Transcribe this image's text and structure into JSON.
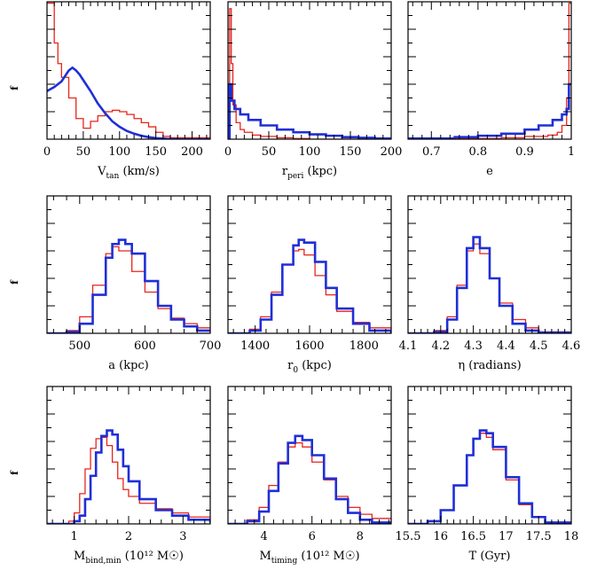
{
  "figure": {
    "colors": {
      "red": "#e8241c",
      "blue": "#1f2fd6",
      "axis": "#000000"
    },
    "y_label": "f"
  },
  "chart_data": [
    {
      "type": "line",
      "xlabel_main": "V",
      "xlabel_sub": "tan",
      "xlabel_tail": " (km/s)",
      "xlim": [
        0,
        225
      ],
      "ylim": [
        0,
        1
      ],
      "xticks": [
        0,
        50,
        100,
        150,
        200
      ],
      "series": [
        {
          "color": "red",
          "step": true,
          "x": [
            0,
            5,
            10,
            15,
            20,
            30,
            40,
            50,
            60,
            70,
            80,
            90,
            100,
            110,
            120,
            130,
            140,
            150,
            160,
            170,
            225
          ],
          "y": [
            0.99,
            0.99,
            0.7,
            0.55,
            0.45,
            0.3,
            0.15,
            0.08,
            0.13,
            0.17,
            0.2,
            0.21,
            0.2,
            0.18,
            0.15,
            0.12,
            0.09,
            0.05,
            0.02,
            0.01,
            0.0
          ]
        },
        {
          "color": "blue",
          "step": false,
          "x": [
            0,
            10,
            20,
            30,
            35,
            40,
            45,
            50,
            60,
            70,
            80,
            90,
            100,
            110,
            120,
            130,
            140,
            150,
            165,
            180,
            225
          ],
          "y": [
            0.35,
            0.38,
            0.42,
            0.5,
            0.52,
            0.5,
            0.47,
            0.43,
            0.35,
            0.26,
            0.19,
            0.13,
            0.09,
            0.06,
            0.04,
            0.025,
            0.015,
            0.008,
            0.003,
            0.0,
            0.0
          ]
        }
      ]
    },
    {
      "type": "line",
      "xlabel_main": "r",
      "xlabel_sub": "peri",
      "xlabel_tail": " (kpc)",
      "xlim": [
        0,
        200
      ],
      "ylim": [
        0,
        1
      ],
      "xticks": [
        0,
        50,
        100,
        150,
        200
      ],
      "series": [
        {
          "color": "red",
          "step": true,
          "x": [
            0,
            2,
            4,
            6,
            10,
            15,
            20,
            30,
            40,
            60,
            80,
            100,
            200
          ],
          "y": [
            0.0,
            0.95,
            0.55,
            0.25,
            0.12,
            0.07,
            0.05,
            0.03,
            0.02,
            0.01,
            0.005,
            0.0,
            0.0
          ]
        },
        {
          "color": "blue",
          "step": true,
          "x": [
            0,
            2,
            4,
            8,
            15,
            25,
            40,
            60,
            80,
            100,
            120,
            140,
            160,
            180,
            200
          ],
          "y": [
            0.0,
            0.4,
            0.28,
            0.22,
            0.18,
            0.14,
            0.1,
            0.07,
            0.05,
            0.035,
            0.025,
            0.015,
            0.01,
            0.005,
            0.003
          ]
        }
      ]
    },
    {
      "type": "line",
      "xlabel_main": "e",
      "xlabel_sub": "",
      "xlabel_tail": "",
      "xlim": [
        0.65,
        1.0
      ],
      "ylim": [
        0,
        1
      ],
      "xticks": [
        0.7,
        0.8,
        0.9,
        1.0
      ],
      "xtick_labels": [
        "0.7",
        "0.8",
        "0.9",
        "1"
      ],
      "series": [
        {
          "color": "red",
          "step": true,
          "x": [
            0.65,
            0.75,
            0.85,
            0.9,
            0.95,
            0.97,
            0.98,
            0.99,
            0.995,
            1.0
          ],
          "y": [
            0.0,
            0.005,
            0.01,
            0.02,
            0.03,
            0.05,
            0.1,
            0.3,
            0.99,
            0.99
          ]
        },
        {
          "color": "blue",
          "step": true,
          "x": [
            0.65,
            0.75,
            0.8,
            0.85,
            0.9,
            0.93,
            0.96,
            0.98,
            0.99,
            0.995,
            1.0
          ],
          "y": [
            0.005,
            0.015,
            0.025,
            0.04,
            0.07,
            0.1,
            0.14,
            0.18,
            0.22,
            0.4,
            0.4
          ]
        }
      ]
    },
    {
      "type": "line",
      "xlabel_main": "a (kpc)",
      "xlabel_sub": "",
      "xlabel_tail": "",
      "xlim": [
        450,
        700
      ],
      "ylim": [
        0,
        1
      ],
      "xticks": [
        500,
        600,
        700
      ],
      "series": [
        {
          "color": "red",
          "step": true,
          "x": [
            450,
            480,
            500,
            520,
            540,
            550,
            560,
            580,
            600,
            620,
            640,
            660,
            680,
            700
          ],
          "y": [
            0.0,
            0.02,
            0.12,
            0.35,
            0.58,
            0.63,
            0.6,
            0.45,
            0.3,
            0.18,
            0.11,
            0.07,
            0.04,
            0.02
          ]
        },
        {
          "color": "blue",
          "step": true,
          "x": [
            450,
            480,
            500,
            520,
            540,
            550,
            560,
            570,
            580,
            600,
            620,
            640,
            660,
            680,
            700
          ],
          "y": [
            0.0,
            0.01,
            0.07,
            0.28,
            0.55,
            0.65,
            0.68,
            0.65,
            0.58,
            0.38,
            0.2,
            0.1,
            0.05,
            0.02,
            0.01
          ]
        }
      ]
    },
    {
      "type": "line",
      "xlabel_main": "r",
      "xlabel_sub": "0",
      "xlabel_tail": " (kpc)",
      "xlim": [
        1300,
        1900
      ],
      "ylim": [
        0,
        1
      ],
      "xticks": [
        1400,
        1600,
        1800
      ],
      "series": [
        {
          "color": "red",
          "step": true,
          "x": [
            1300,
            1380,
            1420,
            1460,
            1500,
            1540,
            1560,
            1580,
            1620,
            1660,
            1700,
            1760,
            1820,
            1900
          ],
          "y": [
            0.0,
            0.03,
            0.12,
            0.3,
            0.5,
            0.6,
            0.61,
            0.57,
            0.42,
            0.28,
            0.16,
            0.08,
            0.04,
            0.01
          ]
        },
        {
          "color": "blue",
          "step": true,
          "x": [
            1300,
            1380,
            1420,
            1460,
            1500,
            1540,
            1560,
            1580,
            1620,
            1660,
            1700,
            1760,
            1820,
            1900
          ],
          "y": [
            0.0,
            0.02,
            0.1,
            0.28,
            0.5,
            0.64,
            0.68,
            0.66,
            0.52,
            0.33,
            0.18,
            0.07,
            0.02,
            0.0
          ]
        }
      ]
    },
    {
      "type": "line",
      "xlabel_main": "η (radians)",
      "xlabel_sub": "",
      "xlabel_tail": "",
      "xlim": [
        4.1,
        4.6
      ],
      "ylim": [
        0,
        1
      ],
      "xticks": [
        4.1,
        4.2,
        4.3,
        4.4,
        4.5,
        4.6
      ],
      "series": [
        {
          "color": "red",
          "step": true,
          "x": [
            4.1,
            4.18,
            4.22,
            4.25,
            4.28,
            4.3,
            4.32,
            4.35,
            4.38,
            4.42,
            4.46,
            4.5,
            4.6
          ],
          "y": [
            0.0,
            0.02,
            0.12,
            0.35,
            0.6,
            0.65,
            0.58,
            0.4,
            0.22,
            0.1,
            0.04,
            0.01,
            0.0
          ]
        },
        {
          "color": "blue",
          "step": true,
          "x": [
            4.1,
            4.18,
            4.22,
            4.25,
            4.28,
            4.3,
            4.32,
            4.35,
            4.38,
            4.42,
            4.46,
            4.5,
            4.6
          ],
          "y": [
            0.0,
            0.01,
            0.1,
            0.33,
            0.62,
            0.7,
            0.62,
            0.4,
            0.2,
            0.07,
            0.02,
            0.005,
            0.0
          ]
        }
      ]
    },
    {
      "type": "line",
      "xlabel_main": "M",
      "xlabel_sub": "bind,min",
      "xlabel_tail": " (10¹² M☉)",
      "xlim": [
        0.5,
        3.5
      ],
      "ylim": [
        0,
        1
      ],
      "xticks": [
        1,
        2,
        3
      ],
      "series": [
        {
          "color": "red",
          "step": true,
          "x": [
            0.5,
            0.9,
            1.0,
            1.1,
            1.2,
            1.3,
            1.4,
            1.5,
            1.6,
            1.7,
            1.8,
            1.9,
            2.0,
            2.2,
            2.5,
            2.8,
            3.1,
            3.5
          ],
          "y": [
            0.0,
            0.02,
            0.08,
            0.22,
            0.4,
            0.55,
            0.62,
            0.63,
            0.57,
            0.45,
            0.33,
            0.25,
            0.2,
            0.15,
            0.11,
            0.08,
            0.05,
            0.02
          ]
        },
        {
          "color": "blue",
          "step": true,
          "x": [
            0.5,
            1.0,
            1.1,
            1.2,
            1.3,
            1.4,
            1.5,
            1.6,
            1.7,
            1.8,
            1.9,
            2.0,
            2.2,
            2.5,
            2.8,
            3.1,
            3.5
          ],
          "y": [
            0.0,
            0.02,
            0.06,
            0.18,
            0.35,
            0.52,
            0.64,
            0.68,
            0.65,
            0.54,
            0.42,
            0.31,
            0.18,
            0.1,
            0.06,
            0.03,
            0.01
          ]
        }
      ]
    },
    {
      "type": "line",
      "xlabel_main": "M",
      "xlabel_sub": "timing",
      "xlabel_tail": " (10¹² M☉)",
      "xlim": [
        2.5,
        9.3
      ],
      "ylim": [
        0,
        1
      ],
      "xticks": [
        4,
        6,
        8
      ],
      "series": [
        {
          "color": "red",
          "step": true,
          "x": [
            2.5,
            3.3,
            3.8,
            4.2,
            4.6,
            5.0,
            5.3,
            5.6,
            6.0,
            6.5,
            7.0,
            7.5,
            8.0,
            8.5,
            9.3
          ],
          "y": [
            0.0,
            0.03,
            0.12,
            0.28,
            0.45,
            0.56,
            0.59,
            0.56,
            0.45,
            0.32,
            0.2,
            0.12,
            0.07,
            0.04,
            0.02
          ]
        },
        {
          "color": "blue",
          "step": true,
          "x": [
            2.5,
            3.3,
            3.8,
            4.2,
            4.6,
            5.0,
            5.3,
            5.6,
            6.0,
            6.5,
            7.0,
            7.5,
            8.0,
            8.5,
            9.3
          ],
          "y": [
            0.0,
            0.02,
            0.09,
            0.24,
            0.44,
            0.59,
            0.64,
            0.61,
            0.5,
            0.33,
            0.18,
            0.08,
            0.03,
            0.01,
            0.0
          ]
        }
      ]
    },
    {
      "type": "line",
      "xlabel_main": "T (Gyr)",
      "xlabel_sub": "",
      "xlabel_tail": "",
      "xlim": [
        15.5,
        18
      ],
      "ylim": [
        0,
        1
      ],
      "xticks": [
        15.5,
        16,
        16.5,
        17,
        17.5,
        18
      ],
      "series": [
        {
          "color": "red",
          "step": true,
          "x": [
            15.5,
            15.8,
            16.0,
            16.2,
            16.4,
            16.5,
            16.6,
            16.7,
            16.8,
            17.0,
            17.2,
            17.4,
            17.6,
            18.0
          ],
          "y": [
            0.0,
            0.02,
            0.1,
            0.28,
            0.5,
            0.62,
            0.66,
            0.63,
            0.54,
            0.32,
            0.14,
            0.05,
            0.01,
            0.0
          ]
        },
        {
          "color": "blue",
          "step": true,
          "x": [
            15.5,
            15.8,
            16.0,
            16.2,
            16.4,
            16.5,
            16.6,
            16.7,
            16.8,
            17.0,
            17.2,
            17.4,
            17.6,
            18.0
          ],
          "y": [
            0.0,
            0.02,
            0.1,
            0.28,
            0.5,
            0.62,
            0.68,
            0.66,
            0.56,
            0.34,
            0.15,
            0.05,
            0.01,
            0.0
          ]
        }
      ]
    }
  ]
}
